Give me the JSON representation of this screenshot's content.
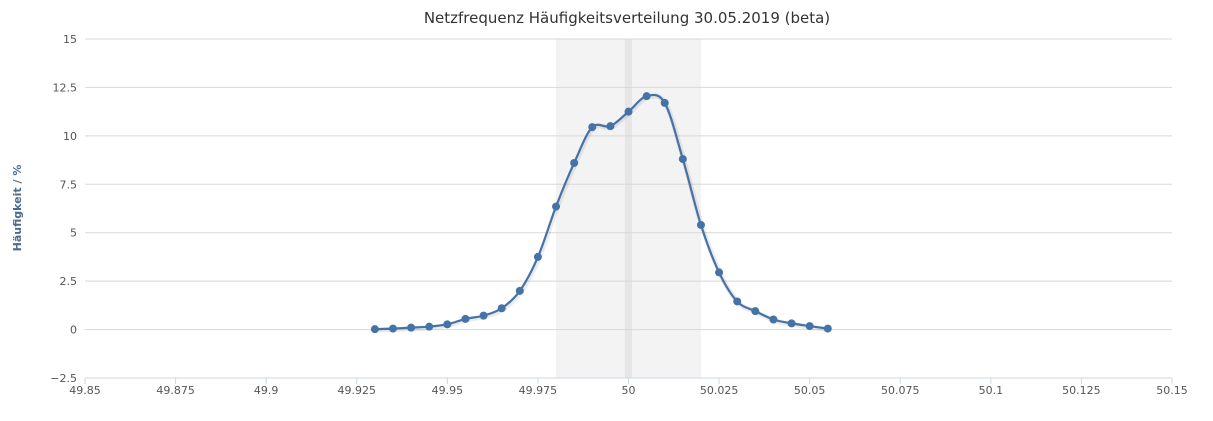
{
  "chart_data": {
    "type": "line",
    "title": "Netzfrequenz Häufigkeitsverteilung 30.05.2019 (beta)",
    "xlabel": "",
    "ylabel": "Häufigkeit / %",
    "xlim": [
      49.85,
      50.15
    ],
    "ylim": [
      -2.5,
      15
    ],
    "x_ticks": [
      "49.85",
      "49.875",
      "49.9",
      "49.925",
      "49.95",
      "49.975",
      "50",
      "50.025",
      "50.05",
      "50.075",
      "50.1",
      "50.125",
      "50.15"
    ],
    "y_ticks": [
      "15",
      "12.5",
      "10",
      "7.5",
      "5",
      "2.5",
      "0",
      "−2.5"
    ],
    "x_tick_values": [
      49.85,
      49.875,
      49.9,
      49.925,
      49.95,
      49.975,
      50,
      50.025,
      50.05,
      50.075,
      50.1,
      50.125,
      50.15
    ],
    "y_tick_values": [
      15,
      12.5,
      10,
      7.5,
      5,
      2.5,
      0,
      -2.5
    ],
    "plot_bands": [
      {
        "from": 49.98,
        "to": 50.02,
        "color": "#f3f3f3"
      },
      {
        "from": 49.999,
        "to": 50.001,
        "color": "#e6e6e6"
      }
    ],
    "series": [
      {
        "color": "#4572a7",
        "points": [
          [
            49.93,
            0.02
          ],
          [
            49.935,
            0.05
          ],
          [
            49.94,
            0.1
          ],
          [
            49.945,
            0.15
          ],
          [
            49.95,
            0.27
          ],
          [
            49.955,
            0.55
          ],
          [
            49.96,
            0.72
          ],
          [
            49.965,
            1.1
          ],
          [
            49.97,
            2.0
          ],
          [
            49.975,
            3.75
          ],
          [
            49.98,
            6.35
          ],
          [
            49.985,
            8.6
          ],
          [
            49.99,
            10.45
          ],
          [
            49.995,
            10.5
          ],
          [
            50.0,
            11.25
          ],
          [
            50.005,
            12.05
          ],
          [
            50.01,
            11.7
          ],
          [
            50.015,
            8.8
          ],
          [
            50.02,
            5.4
          ],
          [
            50.025,
            2.95
          ],
          [
            50.03,
            1.45
          ],
          [
            50.035,
            0.95
          ],
          [
            50.04,
            0.52
          ],
          [
            50.045,
            0.32
          ],
          [
            50.05,
            0.18
          ],
          [
            50.055,
            0.05
          ]
        ]
      }
    ]
  }
}
